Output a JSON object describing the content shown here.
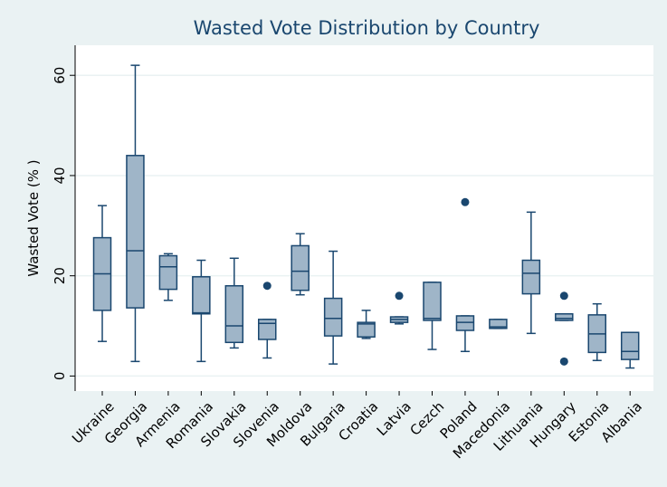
{
  "chart_data": {
    "type": "box",
    "title": "Wasted Vote Distribution by Country",
    "y_label": "Wasted Vote (% )",
    "categories": [
      "Ukraine",
      "Georgia",
      "Armenia",
      "Romania",
      "Slovakia",
      "Slovenia",
      "Moldova",
      "Bulgaria",
      "Croatia",
      "Latvia",
      "Cezch",
      "Poland",
      "Macedonia",
      "Lithuania",
      "Hungary",
      "Estonia",
      "Albania"
    ],
    "lower": [
      6.9,
      2.9,
      15.1,
      2.9,
      5.6,
      3.6,
      16.2,
      2.4,
      7.5,
      10.4,
      5.3,
      4.9,
      9.5,
      8.5,
      11.1,
      3.1,
      1.6
    ],
    "q1": [
      13.1,
      13.6,
      17.3,
      12.4,
      6.7,
      7.3,
      17.1,
      8.0,
      7.8,
      10.7,
      11.1,
      9.1,
      9.5,
      16.4,
      11.1,
      4.7,
      3.3
    ],
    "median": [
      20.4,
      25,
      21.8,
      12.6,
      10.0,
      10.5,
      20.9,
      11.5,
      10.4,
      11.3,
      11.5,
      10.7,
      9.8,
      20.5,
      11.5,
      8.4,
      4.9
    ],
    "q3": [
      27.6,
      44.0,
      24.0,
      19.8,
      18.0,
      11.3,
      26.0,
      15.5,
      10.7,
      11.8,
      18.7,
      12.0,
      11.3,
      23.1,
      12.4,
      12.2,
      8.7
    ],
    "upper": [
      34.0,
      62.0,
      24.4,
      23.1,
      23.5,
      11.3,
      28.4,
      24.9,
      13.1,
      11.8,
      18.7,
      12.0,
      11.3,
      32.7,
      12.4,
      14.4,
      8.7
    ],
    "outliers": [
      [],
      [],
      [],
      [],
      [],
      [
        18.0
      ],
      [],
      [],
      [],
      [
        16.0
      ],
      [],
      [
        34.7
      ],
      [],
      [],
      [
        16.0,
        2.9
      ],
      [],
      []
    ],
    "box_color": "#9fb5c8",
    "line_color": "#1a476f",
    "ylim": [
      -3,
      66
    ],
    "yticks": [
      0,
      20,
      40,
      60
    ],
    "grid": true
  }
}
